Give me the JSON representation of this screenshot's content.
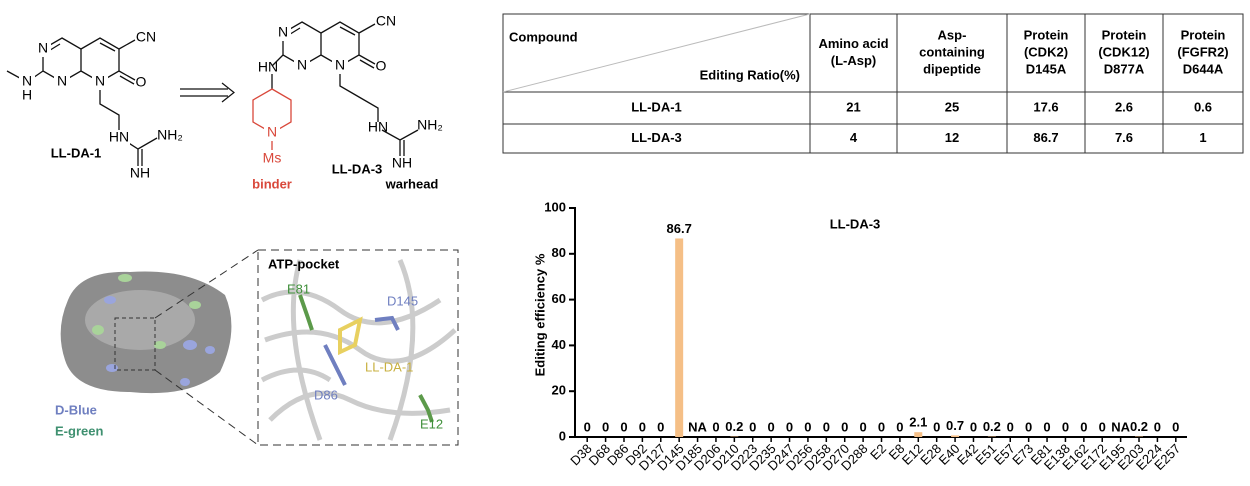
{
  "structures": {
    "compounds": [
      {
        "name": "LL-DA-1",
        "atoms": [
          "N",
          "N",
          "N",
          "CN",
          "O",
          "N",
          "H",
          "HN",
          "NH₂",
          "NH"
        ]
      },
      {
        "name": "LL-DA-3",
        "atoms": [
          "N",
          "N",
          "N",
          "CN",
          "O",
          "HN",
          "N",
          "Ms",
          "HN",
          "NH₂",
          "NH"
        ],
        "binder": "binder",
        "warhead": "warhead"
      }
    ]
  },
  "table": {
    "header_left_top": "Compound",
    "header_left_bottom": "Editing Ratio(%)",
    "columns": [
      [
        "Amino acid",
        "(L-Asp)"
      ],
      [
        "Asp-",
        "containing",
        "dipeptide"
      ],
      [
        "Protein",
        "(CDK2)",
        "D145A"
      ],
      [
        "Protein",
        "(CDK12)",
        "D877A"
      ],
      [
        "Protein",
        "(FGFR2)",
        "D644A"
      ]
    ],
    "rows": [
      {
        "compound": "LL-DA-1",
        "values": [
          21,
          25,
          17.6,
          2.6,
          0.6
        ]
      },
      {
        "compound": "LL-DA-3",
        "values": [
          4,
          12,
          86.7,
          7.6,
          1
        ]
      }
    ]
  },
  "structure_view": {
    "legend": [
      "D-Blue",
      "E-green"
    ],
    "inset_title": "ATP-pocket",
    "residues": [
      "E81",
      "D145",
      "LL-DA-1",
      "D86",
      "E12"
    ]
  },
  "chart_data": {
    "type": "bar",
    "title": "LL-DA-3",
    "y_label": "Editing efficiency %",
    "categories": [
      "D38",
      "D68",
      "D86",
      "D92",
      "D127",
      "D145",
      "D185",
      "D206",
      "D210",
      "D223",
      "D235",
      "D247",
      "D256",
      "D258",
      "D270",
      "D288",
      "E2",
      "E8",
      "E12",
      "E28",
      "E40",
      "E42",
      "E51",
      "E57",
      "E73",
      "E81",
      "E138",
      "E162",
      "E172",
      "E195",
      "E203",
      "E224",
      "E257"
    ],
    "values": [
      0,
      0,
      0,
      0,
      0,
      86.7,
      null,
      0,
      0.2,
      0,
      0,
      0,
      0,
      0,
      0,
      0,
      0,
      0,
      2.1,
      0,
      0.7,
      0,
      0.2,
      0,
      0,
      0,
      0,
      0,
      0,
      null,
      0.2,
      0,
      0
    ],
    "value_labels": [
      "0",
      "0",
      "0",
      "0",
      "0",
      "86.7",
      "NA",
      "0",
      "0.2",
      "0",
      "0",
      "0",
      "0",
      "0",
      "0",
      "0",
      "0",
      "0",
      "2.1",
      "0",
      "0.7",
      "0",
      "0.2",
      "0",
      "0",
      "0",
      "0",
      "0",
      "0",
      "NA",
      "0.2",
      "0",
      "0"
    ],
    "color": "#f5bf86",
    "ylim": [
      0,
      100
    ],
    "yticks": [
      0,
      20,
      40,
      60,
      80,
      100
    ]
  }
}
